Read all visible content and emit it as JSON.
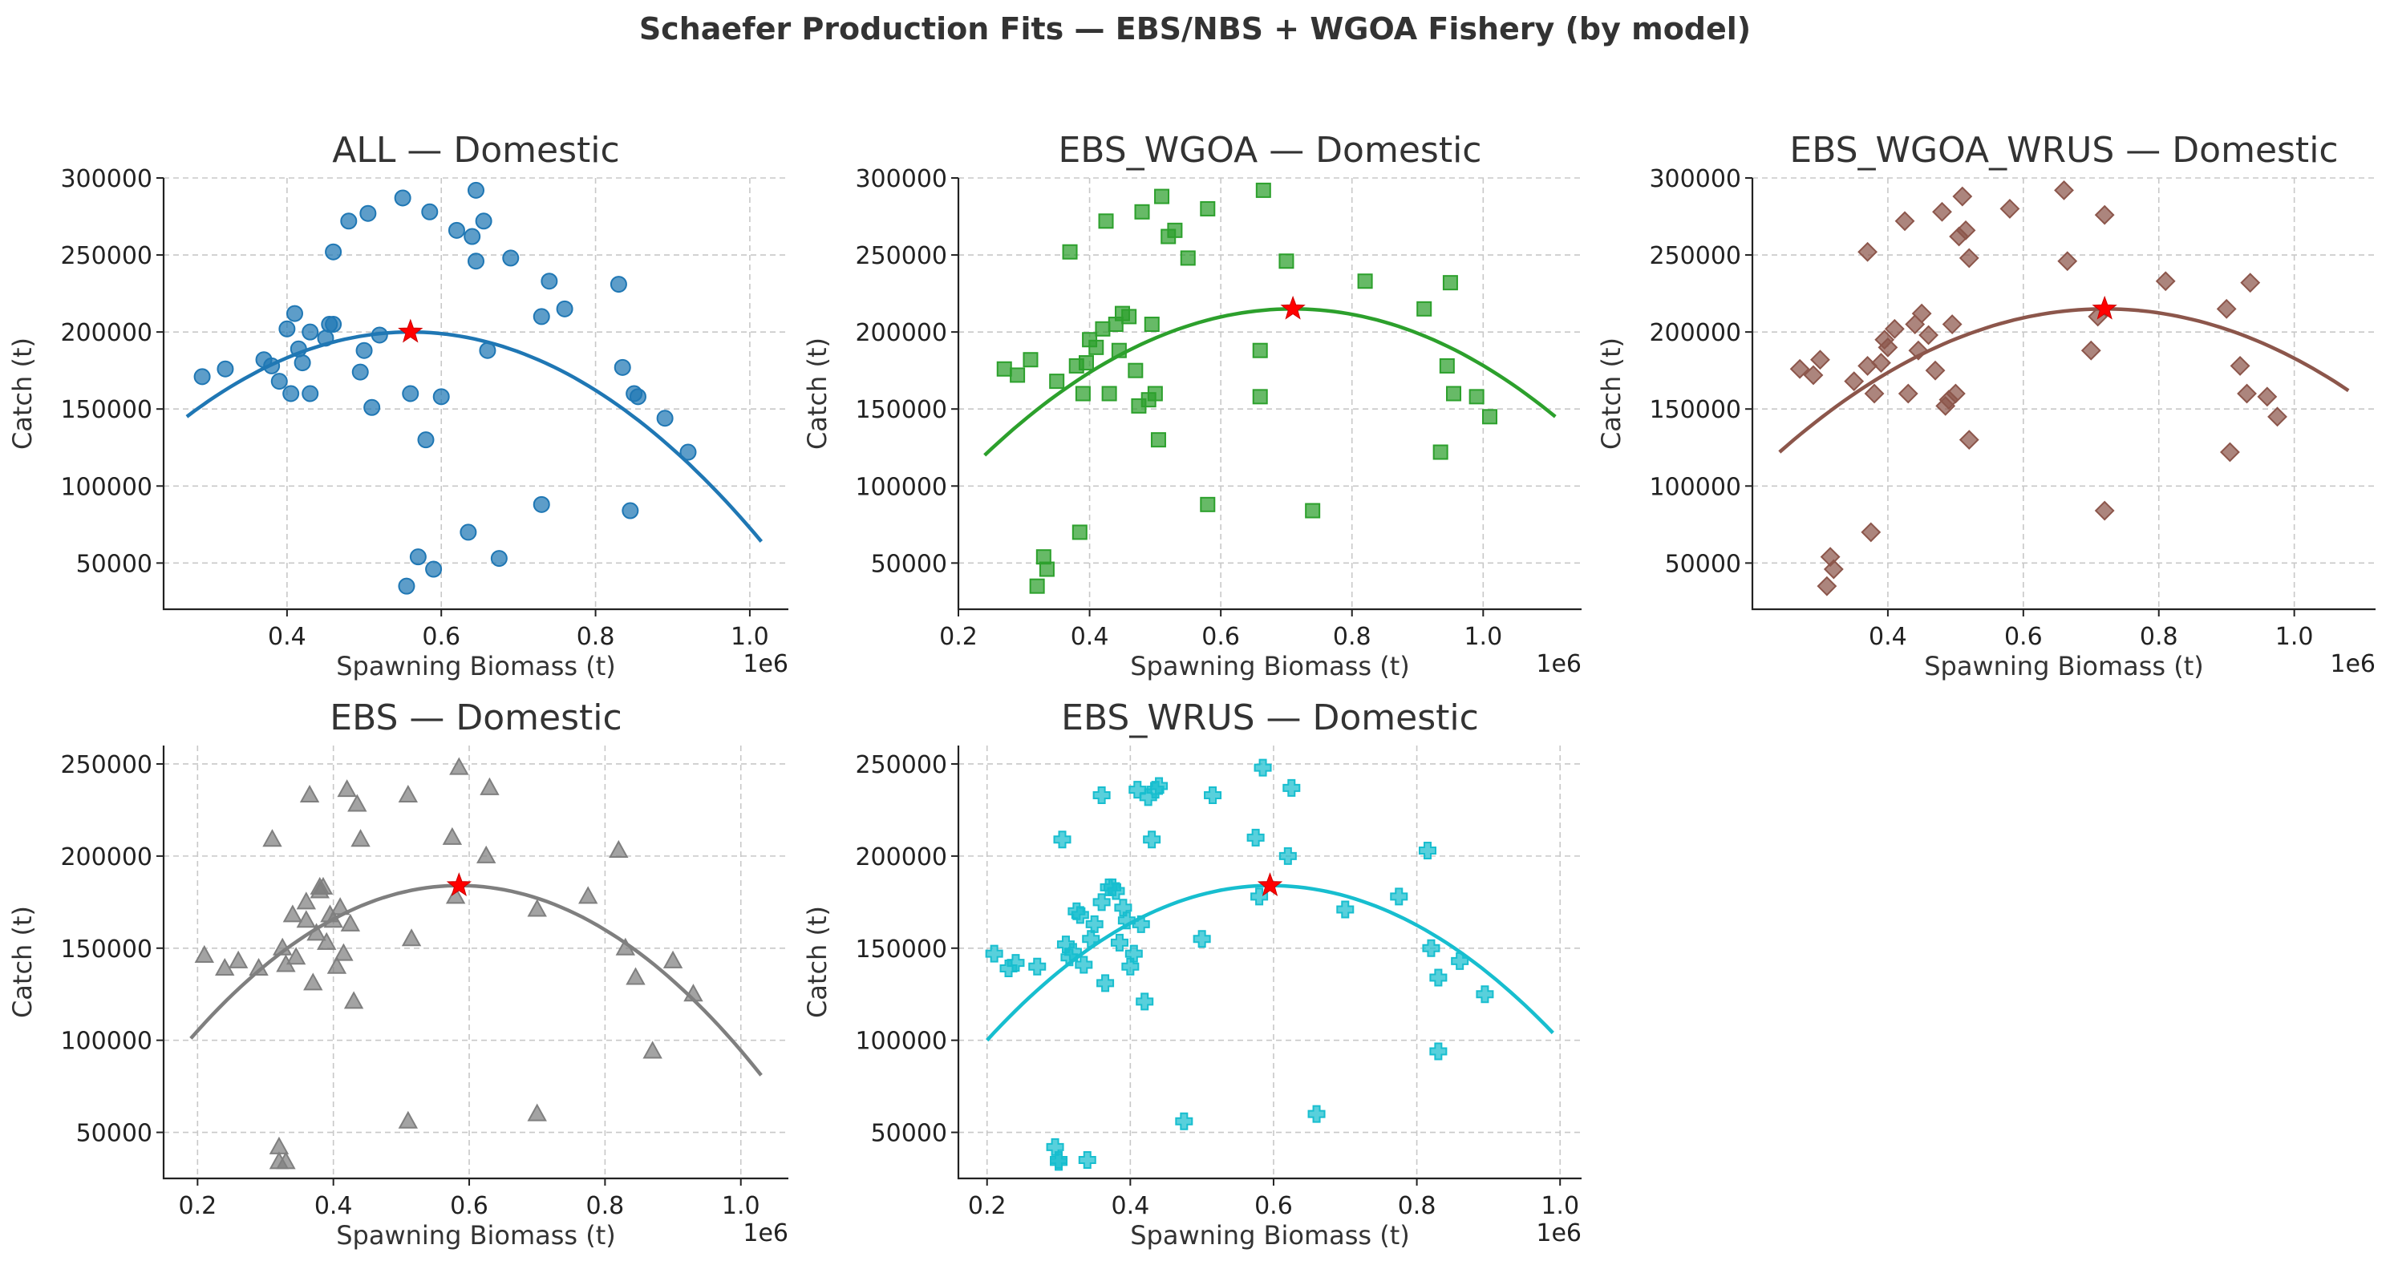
{
  "figure_title": "Schaefer Production Fits — EBS/NBS + WGOA Fishery (by model)",
  "chart_data": [
    {
      "type": "scatter",
      "title": "ALL — Domestic",
      "xlabel": "Spawning Biomass (t)",
      "ylabel": "Catch (t)",
      "x_offset_label": "1e6",
      "xlim": [
        0.24,
        1.05
      ],
      "ylim": [
        20000,
        300000
      ],
      "xticks": [
        0.4,
        0.6,
        0.8,
        1.0
      ],
      "xtick_labels": [
        "0.4",
        "0.6",
        "0.8",
        "1.0"
      ],
      "yticks": [
        50000,
        100000,
        150000,
        200000,
        250000,
        300000
      ],
      "ytick_labels": [
        "50000",
        "100000",
        "150000",
        "200000",
        "250000",
        "300000"
      ],
      "color": "#1f77b4",
      "marker": "circle",
      "points": {
        "x": [
          0.29,
          0.32,
          0.37,
          0.38,
          0.39,
          0.4,
          0.405,
          0.41,
          0.415,
          0.42,
          0.43,
          0.43,
          0.45,
          0.455,
          0.46,
          0.46,
          0.48,
          0.495,
          0.5,
          0.505,
          0.51,
          0.52,
          0.55,
          0.555,
          0.56,
          0.57,
          0.58,
          0.585,
          0.59,
          0.6,
          0.62,
          0.635,
          0.64,
          0.645,
          0.645,
          0.655,
          0.66,
          0.675,
          0.69,
          0.73,
          0.73,
          0.74,
          0.76,
          0.83,
          0.835,
          0.845,
          0.85,
          0.855,
          0.89,
          0.92
        ],
        "y": [
          171000,
          176000,
          182000,
          178000,
          168000,
          202000,
          160000,
          212000,
          189000,
          180000,
          160000,
          200000,
          196000,
          205000,
          205000,
          252000,
          272000,
          174000,
          188000,
          277000,
          151000,
          198000,
          287000,
          35000,
          160000,
          54000,
          130000,
          278000,
          46000,
          158000,
          266000,
          70000,
          262000,
          292000,
          246000,
          272000,
          188000,
          53000,
          248000,
          88000,
          210000,
          233000,
          215000,
          231000,
          177000,
          84000,
          160000,
          158000,
          144000,
          122000
        ]
      },
      "curve": {
        "x": [
          0.27,
          1.015
        ],
        "peak_x": 0.56,
        "peak_y": 200000,
        "end_y": [
          145000,
          64000
        ]
      },
      "msy_point": {
        "x": 0.56,
        "y": 200000
      }
    },
    {
      "type": "scatter",
      "title": "EBS_WGOA — Domestic",
      "xlabel": "Spawning Biomass (t)",
      "ylabel": "Catch (t)",
      "x_offset_label": "1e6",
      "xlim": [
        0.2,
        1.15
      ],
      "ylim": [
        20000,
        300000
      ],
      "xticks": [
        0.2,
        0.4,
        0.6,
        0.8,
        1.0
      ],
      "xtick_labels": [
        "0.2",
        "0.4",
        "0.6",
        "0.8",
        "1.0"
      ],
      "yticks": [
        50000,
        100000,
        150000,
        200000,
        250000,
        300000
      ],
      "ytick_labels": [
        "50000",
        "100000",
        "150000",
        "200000",
        "250000",
        "300000"
      ],
      "color": "#2ca02c",
      "marker": "square",
      "points": {
        "x": [
          0.27,
          0.29,
          0.31,
          0.32,
          0.33,
          0.335,
          0.35,
          0.37,
          0.38,
          0.385,
          0.39,
          0.395,
          0.4,
          0.41,
          0.42,
          0.425,
          0.43,
          0.44,
          0.445,
          0.45,
          0.46,
          0.47,
          0.475,
          0.48,
          0.49,
          0.495,
          0.5,
          0.505,
          0.51,
          0.52,
          0.53,
          0.55,
          0.58,
          0.58,
          0.66,
          0.66,
          0.665,
          0.7,
          0.74,
          0.82,
          0.91,
          0.935,
          0.945,
          0.95,
          0.955,
          0.99,
          1.01
        ],
        "y": [
          176000,
          172000,
          182000,
          35000,
          54000,
          46000,
          168000,
          252000,
          178000,
          70000,
          160000,
          180000,
          195000,
          190000,
          202000,
          272000,
          160000,
          205000,
          188000,
          212000,
          210000,
          175000,
          152000,
          278000,
          156000,
          205000,
          160000,
          130000,
          288000,
          262000,
          266000,
          248000,
          88000,
          280000,
          158000,
          188000,
          292000,
          246000,
          84000,
          233000,
          215000,
          122000,
          178000,
          232000,
          160000,
          158000,
          145000
        ]
      },
      "curve": {
        "x": [
          0.24,
          1.11
        ],
        "peak_x": 0.71,
        "peak_y": 215000,
        "end_y": [
          120000,
          145000
        ]
      },
      "msy_point": {
        "x": 0.71,
        "y": 215000
      }
    },
    {
      "type": "scatter",
      "title": "EBS_WGOA_WRUS — Domestic",
      "xlabel": "Spawning Biomass (t)",
      "ylabel": "Catch (t)",
      "x_offset_label": "1e6",
      "xlim": [
        0.2,
        1.12
      ],
      "ylim": [
        20000,
        300000
      ],
      "xticks": [
        0.4,
        0.6,
        0.8,
        1.0
      ],
      "xtick_labels": [
        "0.4",
        "0.6",
        "0.8",
        "1.0"
      ],
      "yticks": [
        50000,
        100000,
        150000,
        200000,
        250000,
        300000
      ],
      "ytick_labels": [
        "50000",
        "100000",
        "150000",
        "200000",
        "250000",
        "300000"
      ],
      "color": "#8c564b",
      "marker": "diamond",
      "points": {
        "x": [
          0.27,
          0.29,
          0.3,
          0.31,
          0.315,
          0.32,
          0.35,
          0.37,
          0.37,
          0.375,
          0.38,
          0.39,
          0.395,
          0.4,
          0.41,
          0.425,
          0.43,
          0.44,
          0.445,
          0.45,
          0.46,
          0.47,
          0.48,
          0.485,
          0.49,
          0.495,
          0.5,
          0.505,
          0.51,
          0.515,
          0.52,
          0.52,
          0.58,
          0.66,
          0.665,
          0.7,
          0.71,
          0.72,
          0.72,
          0.81,
          0.9,
          0.905,
          0.92,
          0.93,
          0.935,
          0.96,
          0.975
        ],
        "y": [
          176000,
          172000,
          182000,
          35000,
          54000,
          46000,
          168000,
          252000,
          178000,
          70000,
          160000,
          180000,
          195000,
          190000,
          202000,
          272000,
          160000,
          205000,
          188000,
          212000,
          198000,
          175000,
          278000,
          152000,
          156000,
          205000,
          160000,
          262000,
          288000,
          266000,
          248000,
          130000,
          280000,
          292000,
          246000,
          188000,
          210000,
          84000,
          276000,
          233000,
          215000,
          122000,
          178000,
          160000,
          232000,
          158000,
          145000
        ]
      },
      "curve": {
        "x": [
          0.24,
          1.08
        ],
        "peak_x": 0.72,
        "peak_y": 215000,
        "end_y": [
          122000,
          162000
        ]
      },
      "msy_point": {
        "x": 0.72,
        "y": 215000
      }
    },
    {
      "type": "scatter",
      "title": "EBS — Domestic",
      "xlabel": "Spawning Biomass (t)",
      "ylabel": "Catch (t)",
      "x_offset_label": "1e6",
      "xlim": [
        0.15,
        1.07
      ],
      "ylim": [
        25000,
        260000
      ],
      "xticks": [
        0.2,
        0.4,
        0.6,
        0.8,
        1.0
      ],
      "xtick_labels": [
        "0.2",
        "0.4",
        "0.6",
        "0.8",
        "1.0"
      ],
      "yticks": [
        50000,
        100000,
        150000,
        200000,
        250000
      ],
      "ytick_labels": [
        "50000",
        "100000",
        "150000",
        "200000",
        "250000"
      ],
      "color": "#7f7f7f",
      "marker": "triangle",
      "points": {
        "x": [
          0.21,
          0.24,
          0.26,
          0.29,
          0.31,
          0.32,
          0.32,
          0.325,
          0.33,
          0.33,
          0.34,
          0.345,
          0.36,
          0.36,
          0.365,
          0.37,
          0.375,
          0.38,
          0.38,
          0.385,
          0.39,
          0.395,
          0.4,
          0.405,
          0.41,
          0.415,
          0.42,
          0.425,
          0.43,
          0.435,
          0.44,
          0.51,
          0.51,
          0.515,
          0.575,
          0.58,
          0.585,
          0.625,
          0.63,
          0.7,
          0.7,
          0.775,
          0.82,
          0.83,
          0.845,
          0.87,
          0.9,
          0.93
        ],
        "y": [
          146000,
          139000,
          143000,
          139000,
          209000,
          42000,
          34000,
          150000,
          34000,
          141000,
          168000,
          145000,
          165000,
          175000,
          233000,
          131000,
          158000,
          181000,
          183000,
          183000,
          153000,
          168000,
          165000,
          140000,
          172000,
          147000,
          236000,
          163000,
          121000,
          228000,
          209000,
          233000,
          56000,
          155000,
          210000,
          178000,
          248000,
          200000,
          237000,
          60000,
          171000,
          178000,
          203000,
          150000,
          134000,
          94000,
          143000,
          125000
        ]
      },
      "curve": {
        "x": [
          0.19,
          1.03
        ],
        "peak_x": 0.585,
        "peak_y": 184000,
        "end_y": [
          101000,
          81000
        ]
      },
      "msy_point": {
        "x": 0.585,
        "y": 184000
      }
    },
    {
      "type": "scatter",
      "title": "EBS_WRUS — Domestic",
      "xlabel": "Spawning Biomass (t)",
      "ylabel": "Catch (t)",
      "x_offset_label": "1e6",
      "xlim": [
        0.16,
        1.03
      ],
      "ylim": [
        25000,
        260000
      ],
      "xticks": [
        0.2,
        0.4,
        0.6,
        0.8,
        1.0
      ],
      "xtick_labels": [
        "0.2",
        "0.4",
        "0.6",
        "0.8",
        "1.0"
      ],
      "yticks": [
        50000,
        100000,
        150000,
        200000,
        250000
      ],
      "ytick_labels": [
        "50000",
        "100000",
        "150000",
        "200000",
        "250000"
      ],
      "color": "#17becf",
      "marker": "plus",
      "points": {
        "x": [
          0.21,
          0.23,
          0.24,
          0.27,
          0.295,
          0.3,
          0.3,
          0.305,
          0.31,
          0.315,
          0.32,
          0.325,
          0.33,
          0.335,
          0.34,
          0.345,
          0.35,
          0.36,
          0.36,
          0.365,
          0.37,
          0.375,
          0.38,
          0.385,
          0.39,
          0.395,
          0.4,
          0.405,
          0.41,
          0.415,
          0.42,
          0.425,
          0.43,
          0.435,
          0.44,
          0.475,
          0.5,
          0.515,
          0.575,
          0.58,
          0.585,
          0.62,
          0.625,
          0.66,
          0.7,
          0.775,
          0.815,
          0.82,
          0.83,
          0.83,
          0.86,
          0.895
        ],
        "y": [
          147000,
          139000,
          142000,
          140000,
          42000,
          35000,
          34000,
          209000,
          152000,
          145000,
          148000,
          170000,
          168000,
          141000,
          35000,
          155000,
          163000,
          175000,
          233000,
          131000,
          183000,
          183000,
          181000,
          153000,
          172000,
          165000,
          140000,
          147000,
          236000,
          163000,
          121000,
          232000,
          209000,
          236000,
          238000,
          56000,
          155000,
          233000,
          210000,
          178000,
          248000,
          200000,
          237000,
          60000,
          171000,
          178000,
          203000,
          150000,
          134000,
          94000,
          143000,
          125000
        ]
      },
      "curve": {
        "x": [
          0.2,
          0.99
        ],
        "peak_x": 0.595,
        "peak_y": 184000,
        "end_y": [
          100000,
          104000
        ]
      },
      "msy_point": {
        "x": 0.595,
        "y": 184000
      }
    }
  ]
}
